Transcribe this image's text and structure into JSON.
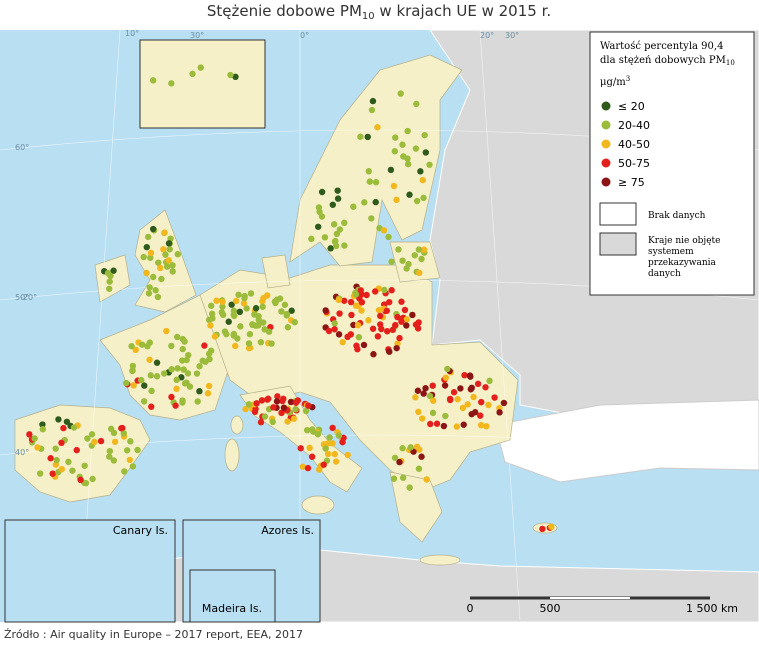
{
  "title": {
    "pre": "Stężenie dobowe PM",
    "sub": "10",
    "post": " w krajach UE w 2015 r."
  },
  "legend": {
    "heading_1": "Wartość   percentyla   90,4",
    "heading_2": "dla stężeń dobowych PM",
    "heading_2_sub": "10",
    "unit": "μg/m",
    "unit_sup": "3",
    "items": [
      {
        "label": "≤ 20",
        "color": "#2e5a1c"
      },
      {
        "label": "20-40",
        "color": "#9bbb3b"
      },
      {
        "label": "40-50",
        "color": "#f2b71d"
      },
      {
        "label": "50-75",
        "color": "#e3201b"
      },
      {
        "label": "≥ 75",
        "color": "#8b1414"
      }
    ],
    "no_data": "Brak danych",
    "not_covered": [
      "Kraje nie objęte",
      "systemem",
      "przekazywania",
      "danych"
    ]
  },
  "insets": {
    "canary": "Canary Is.",
    "azores": "Azores Is.",
    "madeira": "Madeira Is."
  },
  "graticule": [
    "10°",
    "-20°",
    "60°",
    "50°",
    "40°",
    "30°",
    "0°",
    "20°",
    "30°"
  ],
  "scale": [
    "0",
    "500",
    "1 500 km"
  ],
  "source": "Źródło : Air quality in Europe – 2017 report, EEA, 2017"
}
